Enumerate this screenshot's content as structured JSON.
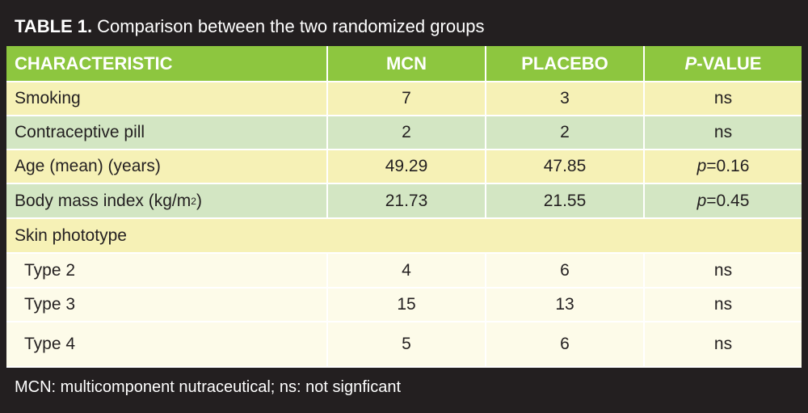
{
  "title": {
    "label": "TABLE 1.",
    "text": "Comparison between the two randomized groups"
  },
  "headers": {
    "characteristic": "CHARACTERISTIC",
    "mcn": "MCN",
    "placebo": "PLACEBO",
    "pvalue_italic": "P",
    "pvalue_rest": "-VALUE"
  },
  "rows": [
    {
      "label": "Smoking",
      "mcn": "7",
      "placebo": "3",
      "p": "ns"
    },
    {
      "label": "Contraceptive pill",
      "mcn": "2",
      "placebo": "2",
      "p": "ns"
    },
    {
      "label": "Age (mean) (years)",
      "mcn": "49.29",
      "placebo": "47.85",
      "p_italic": "p",
      "p_rest": "=0.16"
    },
    {
      "label_main": "Body mass index (kg/m",
      "label_sup": "2",
      "label_end": ")",
      "mcn": "21.73",
      "placebo": "21.55",
      "p_italic": "p",
      "p_rest": "=0.45"
    }
  ],
  "phototype": {
    "label": "Skin phototype",
    "types": [
      {
        "label": "Type 2",
        "mcn": "4",
        "placebo": "6",
        "p": "ns"
      },
      {
        "label": "Type 3",
        "mcn": "15",
        "placebo": "13",
        "p": "ns"
      },
      {
        "label": "Type 4",
        "mcn": "5",
        "placebo": "6",
        "p": "ns"
      }
    ]
  },
  "footer": "MCN: multicomponent nutraceutical; ns: not signficant",
  "colors": {
    "frame": "#231f20",
    "header_green": "#8dc63f",
    "row_yellow": "#f6f1b6",
    "row_green": "#d3e6c3",
    "row_cream": "#fdfbe9"
  }
}
